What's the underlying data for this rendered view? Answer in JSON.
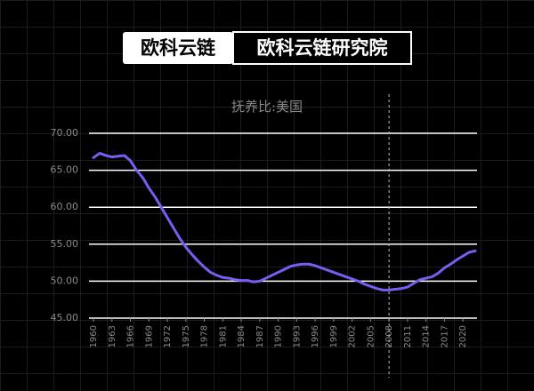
{
  "header": {
    "brand": "欧科云链",
    "institute": "欧科云链研究院"
  },
  "chart_data": {
    "type": "line",
    "title": "抚养比:美国",
    "color": "#7b5cf0",
    "grid": true,
    "vline": 2008,
    "x": [
      1960,
      1961,
      1962,
      1963,
      1964,
      1965,
      1966,
      1967,
      1968,
      1969,
      1970,
      1971,
      1972,
      1973,
      1974,
      1975,
      1976,
      1977,
      1978,
      1979,
      1980,
      1981,
      1982,
      1983,
      1984,
      1985,
      1986,
      1987,
      1988,
      1989,
      1990,
      1991,
      1992,
      1993,
      1994,
      1995,
      1996,
      1997,
      1998,
      1999,
      2000,
      2001,
      2002,
      2003,
      2004,
      2005,
      2006,
      2007,
      2008,
      2009,
      2010,
      2011,
      2012,
      2013,
      2014,
      2015,
      2016,
      2017,
      2018,
      2019,
      2020,
      2021,
      2022
    ],
    "values": [
      66.7,
      67.3,
      67.0,
      66.8,
      66.9,
      67.0,
      66.3,
      65.0,
      64.0,
      62.6,
      61.4,
      60.0,
      58.6,
      57.2,
      55.8,
      54.6,
      53.6,
      52.7,
      51.9,
      51.2,
      50.8,
      50.5,
      50.4,
      50.2,
      50.1,
      50.1,
      49.9,
      50.0,
      50.4,
      50.8,
      51.2,
      51.6,
      52.0,
      52.2,
      52.3,
      52.3,
      52.1,
      51.8,
      51.5,
      51.2,
      50.9,
      50.6,
      50.3,
      50.0,
      49.6,
      49.3,
      49.0,
      48.8,
      48.8,
      48.9,
      49.0,
      49.2,
      49.7,
      50.2,
      50.4,
      50.6,
      51.1,
      51.8,
      52.3,
      52.9,
      53.4,
      53.9,
      54.1
    ],
    "xlim": [
      1960,
      2022
    ],
    "xticks": [
      1960,
      1963,
      1966,
      1969,
      1972,
      1975,
      1978,
      1981,
      1984,
      1987,
      1990,
      1993,
      1996,
      1999,
      2002,
      2005,
      2008,
      2011,
      2014,
      2017,
      2020
    ],
    "ylim": [
      45,
      70
    ],
    "yticks": [
      {
        "value": 45,
        "label": "45.00"
      },
      {
        "value": 50,
        "label": "50.00"
      },
      {
        "value": 55,
        "label": "55.00"
      },
      {
        "value": 60,
        "label": "60.00"
      },
      {
        "value": 65,
        "label": "65.00"
      },
      {
        "value": 70,
        "label": "70.00"
      }
    ]
  }
}
